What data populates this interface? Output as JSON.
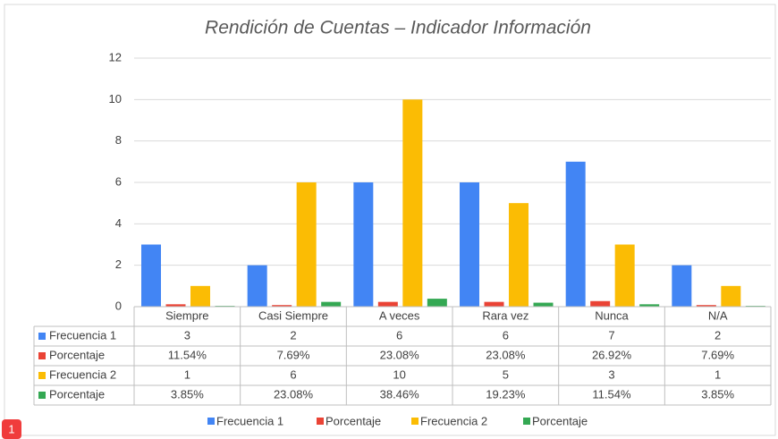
{
  "chart_data": {
    "type": "bar",
    "title": "Rendición de Cuentas – Indicador Información",
    "categories": [
      "Siempre",
      "Casi Siempre",
      "A veces",
      "Rara vez",
      "Nunca",
      "N/A"
    ],
    "series": [
      {
        "name": "Frecuencia 1",
        "color": "#4285f4",
        "values": [
          3,
          2,
          6,
          6,
          7,
          2
        ]
      },
      {
        "name": "Porcentaje",
        "color": "#ea4335",
        "values": [
          0.1154,
          0.0769,
          0.2308,
          0.2308,
          0.2692,
          0.0769
        ],
        "value_labels": [
          "11.54%",
          "7.69%",
          "23.08%",
          "23.08%",
          "26.92%",
          "7.69%"
        ]
      },
      {
        "name": "Frecuencia 2",
        "color": "#fbbc04",
        "values": [
          1,
          6,
          10,
          5,
          3,
          1
        ]
      },
      {
        "name": "Porcentaje",
        "color": "#34a853",
        "values": [
          0.0385,
          0.2308,
          0.3846,
          0.1923,
          0.1154,
          0.0385
        ],
        "value_labels": [
          "3.85%",
          "23.08%",
          "38.46%",
          "19.23%",
          "11.54%",
          "3.85%"
        ]
      }
    ],
    "ylim": [
      0,
      12
    ],
    "yticks": [
      0,
      2,
      4,
      6,
      8,
      10,
      12
    ],
    "grid": true,
    "legend": "bottom",
    "badge": "1"
  }
}
